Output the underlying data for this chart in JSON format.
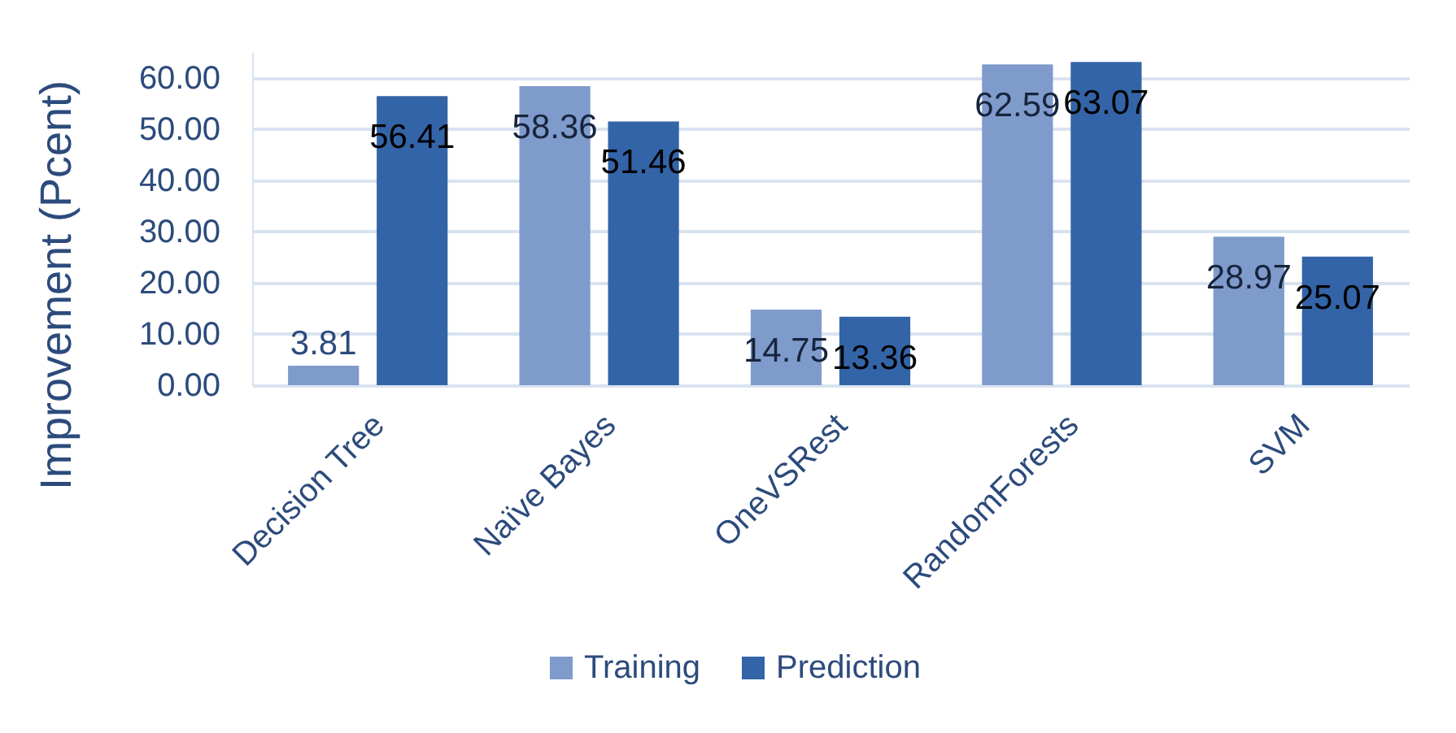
{
  "chart_data": {
    "type": "bar",
    "ylabel": "Improvement (Pcent)",
    "categories": [
      "Decision Tree",
      "Naïve Bayes",
      "OneVSRest",
      "RandomForests",
      "SVM"
    ],
    "series": [
      {
        "name": "Training",
        "color": "#7f9bcb",
        "values": [
          3.81,
          58.36,
          14.75,
          62.59,
          28.97
        ]
      },
      {
        "name": "Prediction",
        "color": "#3464a8",
        "values": [
          56.41,
          51.46,
          13.36,
          63.07,
          25.07
        ]
      }
    ],
    "ylim": [
      0,
      65
    ],
    "yticks": [
      {
        "value": 0,
        "label": "0.00"
      },
      {
        "value": 10,
        "label": "10.00"
      },
      {
        "value": 20,
        "label": "20.00"
      },
      {
        "value": 30,
        "label": "30.00"
      },
      {
        "value": 40,
        "label": "40.00"
      },
      {
        "value": 50,
        "label": "50.00"
      },
      {
        "value": 60,
        "label": "60.00"
      }
    ],
    "grid": "y",
    "legend": "bottom",
    "data_labels": true
  }
}
